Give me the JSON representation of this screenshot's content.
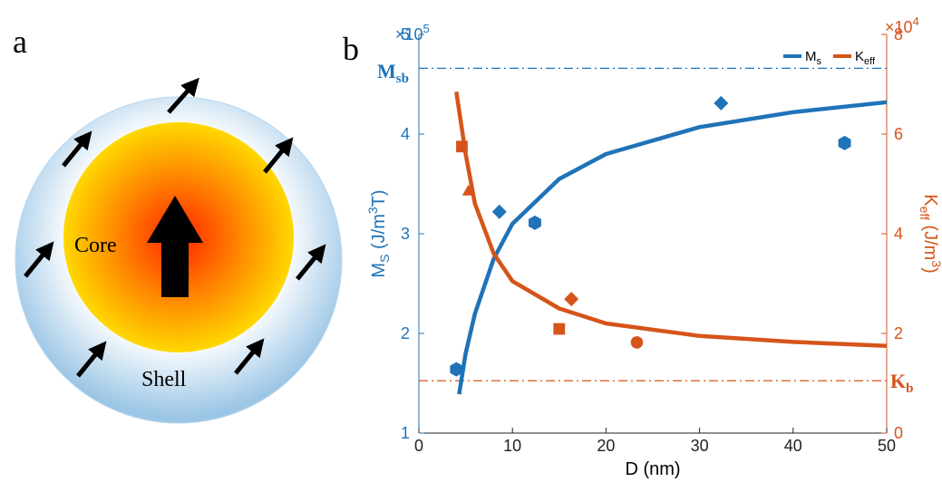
{
  "panel_a": {
    "label": "a",
    "core": "Core",
    "shell": "Shell"
  },
  "chart_data": {
    "type": "scatter",
    "label": "b",
    "x_label": "D (nm)",
    "y_label": [
      "M",
      "S",
      " (J/m",
      "3",
      "T)"
    ],
    "y2_label": [
      "K",
      "eff",
      " (J/m",
      "3",
      ")"
    ],
    "y_scale": [
      "×10",
      "5"
    ],
    "y2_scale": [
      "×10",
      "4"
    ],
    "xlim": [
      0,
      50
    ],
    "xticks": [
      0,
      10,
      20,
      30,
      40,
      50
    ],
    "ylim": [
      1,
      5
    ],
    "yticks": [
      1,
      2,
      3,
      4,
      5
    ],
    "y2lim": [
      0,
      8
    ],
    "y2ticks": [
      0,
      2,
      4,
      6,
      8
    ],
    "legend": "upper right",
    "legend_entries": [
      {
        "parts": [
          "M",
          "s"
        ],
        "color": "#1f73b8"
      },
      {
        "parts": [
          "K",
          "eff"
        ],
        "color": "#d6541a"
      }
    ],
    "ref_lines": [
      {
        "value": 4.66,
        "axis": "y",
        "color": "#1f73b8",
        "parts": [
          "M",
          "sb"
        ]
      },
      {
        "value": 1.05,
        "axis": "y2",
        "color": "#d6541a",
        "parts": [
          "K",
          "b"
        ]
      }
    ],
    "series": [
      {
        "kind": "points",
        "axis": "y",
        "color": "#1f73b8",
        "x": [
          4.0,
          8.6,
          12.4,
          32.3,
          45.5
        ],
        "values": [
          1.64,
          3.22,
          3.11,
          4.31,
          3.91
        ],
        "markers": [
          "hexagon",
          "diamond",
          "hexagon",
          "diamond",
          "hexagon"
        ]
      },
      {
        "kind": "points",
        "axis": "y2",
        "color": "#d6541a",
        "x": [
          4.6,
          5.3,
          16.3,
          15.0,
          23.3
        ],
        "values": [
          5.75,
          4.84,
          2.69,
          2.09,
          1.82
        ],
        "markers": [
          "square",
          "triangle",
          "diamond",
          "square",
          "circle"
        ]
      },
      {
        "kind": "line",
        "axis": "y",
        "color": "#1f73b8",
        "x": [
          4.3,
          5,
          6,
          8,
          10,
          15,
          20,
          30,
          40,
          50
        ],
        "values": [
          1.39,
          1.8,
          2.2,
          2.75,
          3.1,
          3.55,
          3.8,
          4.07,
          4.22,
          4.32
        ]
      },
      {
        "kind": "line",
        "axis": "y2",
        "color": "#d6541a",
        "x": [
          4,
          5,
          6,
          8,
          10,
          15,
          20,
          30,
          40,
          50
        ],
        "values": [
          6.85,
          5.6,
          4.6,
          3.6,
          3.05,
          2.5,
          2.2,
          1.95,
          1.83,
          1.75
        ]
      }
    ]
  }
}
